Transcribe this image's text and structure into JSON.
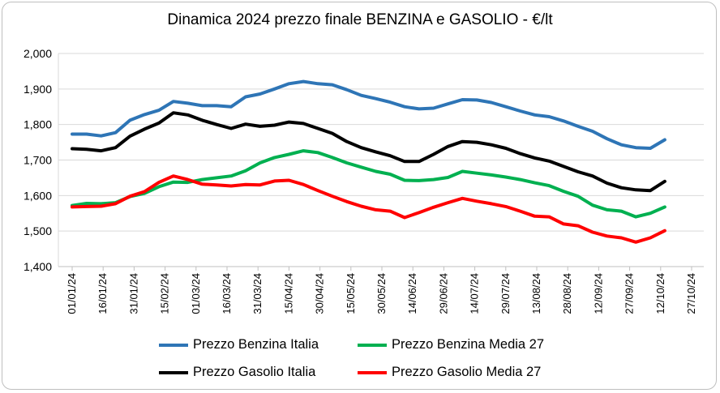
{
  "chart_data": {
    "type": "line",
    "title": "Dinamica 2024 prezzo finale BENZINA e GASOLIO - €/lt",
    "xlabel": "",
    "ylabel": "",
    "ylim": [
      1.4,
      2.0
    ],
    "yticks": [
      "1,400",
      "1,500",
      "1,600",
      "1,700",
      "1,800",
      "1,900",
      "2,000"
    ],
    "xticks": [
      "01/01/24",
      "16/01/24",
      "31/01/24",
      "15/02/24",
      "01/03/24",
      "16/03/24",
      "31/03/24",
      "15/04/24",
      "30/04/24",
      "15/05/24",
      "30/05/24",
      "14/06/24",
      "29/06/24",
      "14/07/24",
      "29/07/24",
      "13/08/24",
      "28/08/24",
      "12/09/24",
      "27/09/24",
      "12/10/24",
      "27/10/24"
    ],
    "grid": true,
    "legend_position": "bottom",
    "x": [
      "01/01/24",
      "08/01/24",
      "15/01/24",
      "22/01/24",
      "29/01/24",
      "05/02/24",
      "12/02/24",
      "19/02/24",
      "26/02/24",
      "04/03/24",
      "11/03/24",
      "18/03/24",
      "25/03/24",
      "01/04/24",
      "08/04/24",
      "15/04/24",
      "22/04/24",
      "29/04/24",
      "06/05/24",
      "13/05/24",
      "20/05/24",
      "27/05/24",
      "03/06/24",
      "10/06/24",
      "17/06/24",
      "24/06/24",
      "01/07/24",
      "08/07/24",
      "15/07/24",
      "22/07/24",
      "29/07/24",
      "05/08/24",
      "12/08/24",
      "19/08/24",
      "26/08/24",
      "02/09/24",
      "09/09/24",
      "16/09/24",
      "23/09/24",
      "30/09/24",
      "07/10/24",
      "14/10/24"
    ],
    "series": [
      {
        "name": "Prezzo Benzina Italia",
        "color": "#2e75b6",
        "values": [
          1.773,
          1.773,
          1.768,
          1.777,
          1.812,
          1.828,
          1.84,
          1.865,
          1.86,
          1.853,
          1.853,
          1.85,
          1.878,
          1.886,
          1.9,
          1.915,
          1.921,
          1.915,
          1.912,
          1.898,
          1.882,
          1.873,
          1.863,
          1.85,
          1.844,
          1.846,
          1.858,
          1.87,
          1.869,
          1.862,
          1.85,
          1.838,
          1.827,
          1.822,
          1.81,
          1.795,
          1.781,
          1.76,
          1.743,
          1.735,
          1.733,
          1.757
        ]
      },
      {
        "name": "Prezzo Benzina Media 27",
        "color": "#00b050",
        "values": [
          1.572,
          1.578,
          1.577,
          1.58,
          1.597,
          1.606,
          1.625,
          1.638,
          1.637,
          1.645,
          1.65,
          1.655,
          1.67,
          1.692,
          1.707,
          1.716,
          1.726,
          1.721,
          1.707,
          1.692,
          1.68,
          1.668,
          1.66,
          1.643,
          1.642,
          1.645,
          1.651,
          1.668,
          1.663,
          1.658,
          1.652,
          1.645,
          1.636,
          1.628,
          1.612,
          1.598,
          1.573,
          1.56,
          1.556,
          1.54,
          1.55,
          1.568
        ]
      },
      {
        "name": "Prezzo Gasolio Italia",
        "color": "#000000",
        "values": [
          1.732,
          1.73,
          1.726,
          1.735,
          1.767,
          1.787,
          1.804,
          1.833,
          1.827,
          1.812,
          1.8,
          1.789,
          1.801,
          1.795,
          1.798,
          1.807,
          1.803,
          1.789,
          1.775,
          1.752,
          1.735,
          1.723,
          1.712,
          1.696,
          1.696,
          1.716,
          1.738,
          1.752,
          1.75,
          1.743,
          1.733,
          1.718,
          1.706,
          1.697,
          1.682,
          1.667,
          1.655,
          1.635,
          1.622,
          1.616,
          1.614,
          1.64
        ]
      },
      {
        "name": "Prezzo Gasolio Media 27",
        "color": "#ff0000",
        "values": [
          1.568,
          1.569,
          1.57,
          1.577,
          1.598,
          1.611,
          1.637,
          1.655,
          1.645,
          1.632,
          1.63,
          1.627,
          1.631,
          1.63,
          1.641,
          1.643,
          1.631,
          1.614,
          1.598,
          1.583,
          1.57,
          1.56,
          1.556,
          1.538,
          1.552,
          1.567,
          1.58,
          1.592,
          1.584,
          1.577,
          1.569,
          1.556,
          1.542,
          1.54,
          1.52,
          1.515,
          1.497,
          1.486,
          1.481,
          1.469,
          1.481,
          1.501
        ]
      }
    ]
  }
}
